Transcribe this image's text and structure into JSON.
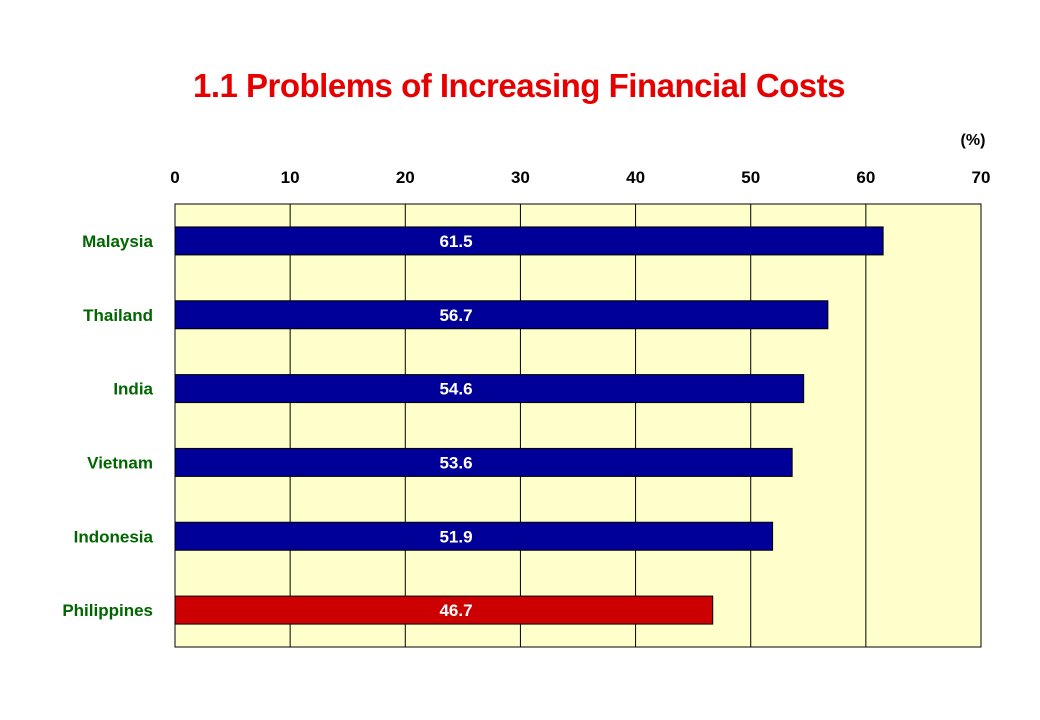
{
  "chart_data": {
    "type": "bar",
    "orientation": "horizontal",
    "title": "1.1 Problems of Increasing Financial Costs",
    "unit_label": "(%)",
    "categories": [
      "Malaysia",
      "Thailand",
      "India",
      "Vietnam",
      "Indonesia",
      "Philippines"
    ],
    "values": [
      61.5,
      56.7,
      54.6,
      53.6,
      51.9,
      46.7
    ],
    "value_labels": [
      "61.5",
      "56.7",
      "54.6",
      "53.6",
      "51.9",
      "46.7"
    ],
    "xlim": [
      0,
      70
    ],
    "xticks": [
      "0",
      "10",
      "20",
      "30",
      "40",
      "50",
      "60",
      "70"
    ],
    "x_axis_position": "top",
    "grid": true,
    "bar_color": "#000099",
    "highlight_color": "#cc0000",
    "highlight_category": "Philippines",
    "plot_background": "#ffffcc"
  }
}
